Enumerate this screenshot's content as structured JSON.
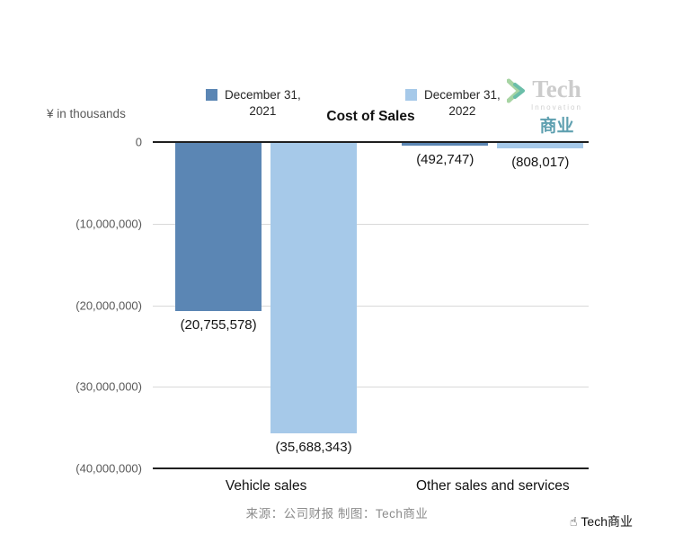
{
  "header": {
    "unit_label": "¥ in thousands",
    "title": "Cost of Sales"
  },
  "legend": [
    {
      "label_line1": "December 31,",
      "label_line2": "2021",
      "color": "#5b86b4"
    },
    {
      "label_line1": "December 31,",
      "label_line2": "2022",
      "color": "#a6c9e9"
    }
  ],
  "chart_data": {
    "type": "bar",
    "title": "Cost of Sales",
    "unit": "¥ in thousands",
    "categories": [
      "Vehicle sales",
      "Other sales and services"
    ],
    "series": [
      {
        "name": "December 31, 2021",
        "color": "#5b86b4",
        "values": [
          -20755578,
          -492747
        ],
        "labels": [
          "(20,755,578)",
          "(492,747)"
        ]
      },
      {
        "name": "December 31, 2022",
        "color": "#a6c9e9",
        "values": [
          -35688343,
          -808017
        ],
        "labels": [
          "(35,688,343)",
          "(808,017)"
        ]
      }
    ],
    "ylim": [
      -40000000,
      0
    ],
    "y_ticks": [
      {
        "value": 0,
        "label": "0"
      },
      {
        "value": -10000000,
        "label": "(10,000,000)"
      },
      {
        "value": -20000000,
        "label": "(20,000,000)"
      },
      {
        "value": -30000000,
        "label": "(30,000,000)"
      },
      {
        "value": -40000000,
        "label": "(40,000,000)"
      }
    ],
    "grid": true,
    "legend_position": "top"
  },
  "watermark": {
    "brand": "Tech",
    "sub": "Innovation",
    "cn": "商业"
  },
  "footer": {
    "source": "来源：公司财报 制图：Tech商业",
    "brand": "Tech商业"
  }
}
